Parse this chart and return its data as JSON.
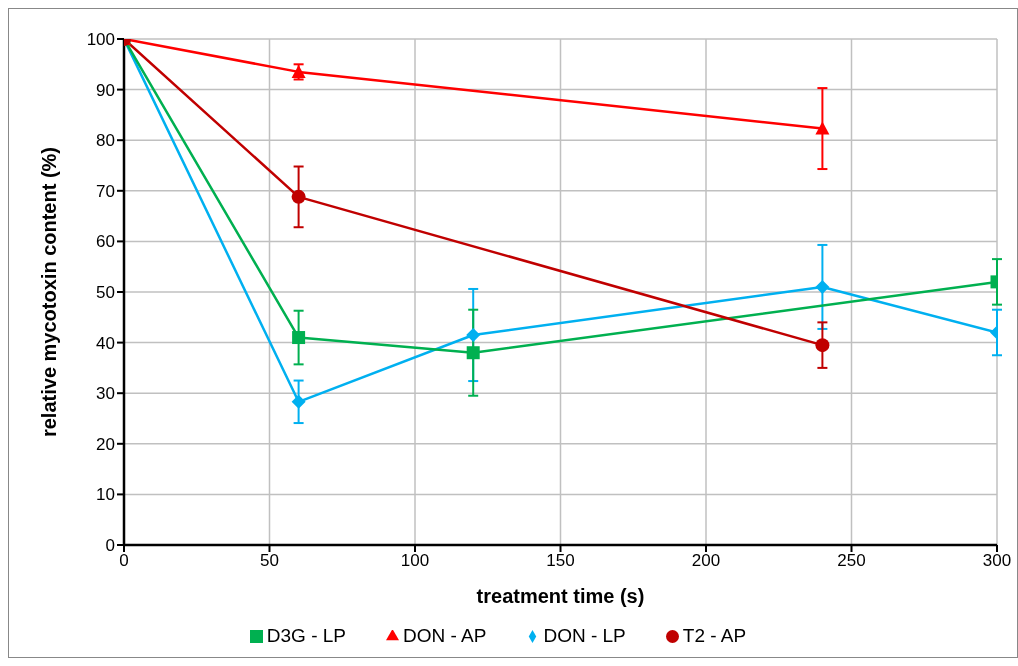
{
  "chart_data": {
    "type": "line",
    "xlabel": "treatment time (s)",
    "ylabel": "relative mycotoxin content (%)",
    "xlim": [
      0,
      300
    ],
    "xticks": [
      0,
      50,
      100,
      150,
      200,
      250,
      300
    ],
    "ylim": [
      0,
      100
    ],
    "yticks": [
      0,
      10,
      20,
      30,
      40,
      50,
      60,
      70,
      80,
      90,
      100
    ],
    "grid": true,
    "legend": "bottom",
    "line_style": "solid",
    "series": [
      {
        "name": "DON - LP",
        "color": "#00b0f0",
        "marker": "diamond",
        "x": [
          0,
          60,
          120,
          240,
          300
        ],
        "values": [
          100,
          28.3,
          41.5,
          51,
          42
        ],
        "errors": [
          null,
          4.2,
          9.1,
          8.3,
          4.5
        ]
      },
      {
        "name": "D3G - LP",
        "color": "#00b050",
        "marker": "square",
        "x": [
          0,
          60,
          120,
          300
        ],
        "values": [
          100,
          41,
          38,
          52
        ],
        "errors": [
          null,
          5.3,
          8.5,
          4.5
        ]
      },
      {
        "name": "DON - AP",
        "color": "#ff0000",
        "marker": "triangle",
        "x": [
          0,
          60,
          240
        ],
        "values": [
          100,
          93.5,
          82.3
        ],
        "errors": [
          null,
          1.5,
          8
        ]
      },
      {
        "name": "T2 - AP",
        "color": "#c00000",
        "marker": "circle",
        "x": [
          0,
          60,
          240
        ],
        "values": [
          100,
          68.8,
          39.5
        ],
        "errors": [
          null,
          6,
          4.5
        ]
      }
    ]
  }
}
